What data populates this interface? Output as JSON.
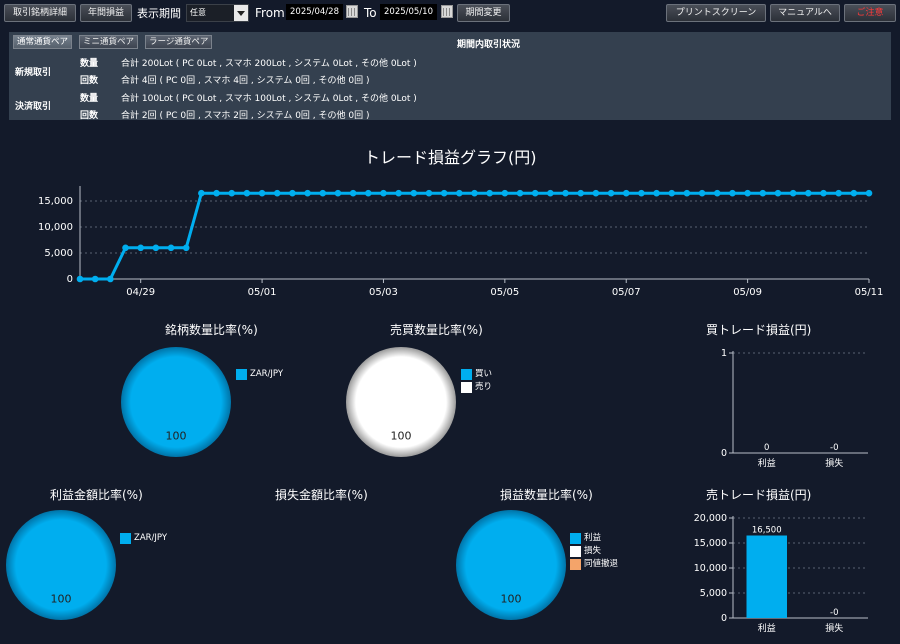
{
  "toolbar": {
    "detail_button": "取引銘柄詳細",
    "annual_button": "年間損益",
    "period_label": "表示期間",
    "period_select_value": "任意",
    "from_label": "From",
    "from_date": "2025/04/28",
    "to_label": "To",
    "to_date": "2025/05/10",
    "change_period_button": "期間変更",
    "print_button": "プリントスクリーン",
    "manual_button": "マニュアルへ",
    "close_button": "ご注意"
  },
  "panel": {
    "tabs": [
      {
        "label": "通常通貨ペア",
        "active": true
      },
      {
        "label": "ミニ通貨ペア",
        "active": false
      },
      {
        "label": "ラージ通貨ペア",
        "active": false
      }
    ],
    "title": "期間内取引状況",
    "new_label": "新規取引",
    "close_label": "決済取引",
    "rows": [
      {
        "key": "数量",
        "value": "合計 200Lot ( PC 0Lot , スマホ 200Lot , システム 0Lot , その他 0Lot )"
      },
      {
        "key": "回数",
        "value": "合計 4回 ( PC 0回 , スマホ 4回 , システム 0回 , その他 0回 )"
      },
      {
        "key": "数量",
        "value": "合計 100Lot ( PC 0Lot , スマホ 100Lot , システム 0Lot , その他 0Lot )"
      },
      {
        "key": "回数",
        "value": "合計 2回 ( PC 0回 , スマホ 2回 , システム 0回 , その他 0回 )"
      }
    ]
  },
  "chart_titles": {
    "main": "トレード損益グラフ(円)",
    "brand_ratio": "銘柄数量比率(%)",
    "side_ratio": "売買数量比率(%)",
    "buy_pl": "買トレード損益(円)",
    "profit_ratio": "利益金額比率(%)",
    "loss_ratio": "損失金額比率(%)",
    "count_ratio": "損益数量比率(%)",
    "sell_pl": "売トレード損益(円)"
  },
  "colors": {
    "accent": "#00aeef",
    "white": "#ffffff",
    "orange": "#f4a46a",
    "background": "#131a2a"
  },
  "chart_data": [
    {
      "type": "line",
      "name": "trade-pl-line",
      "title": "トレード損益グラフ(円)",
      "ylim": [
        0,
        17500
      ],
      "yticks": [
        0,
        5000,
        10000,
        15000
      ],
      "ytick_labels": [
        "0",
        "5,000",
        "10,000",
        "15,000"
      ],
      "x_start_date": "04/28",
      "x_tick_labels": [
        "04/29",
        "05/01",
        "05/03",
        "05/05",
        "05/07",
        "05/09",
        "05/11"
      ],
      "x_tick_positions": [
        2,
        6,
        10,
        14,
        18,
        22,
        26
      ],
      "x_max": 26,
      "points_per_day": 2,
      "values": [
        0,
        0,
        0,
        6000,
        6000,
        6000,
        6000,
        6000,
        16500,
        16500,
        16500,
        16500,
        16500,
        16500,
        16500,
        16500,
        16500,
        16500,
        16500,
        16500,
        16500,
        16500,
        16500,
        16500,
        16500,
        16500,
        16500,
        16500,
        16500,
        16500,
        16500,
        16500,
        16500,
        16500,
        16500,
        16500,
        16500,
        16500,
        16500,
        16500,
        16500,
        16500,
        16500,
        16500,
        16500,
        16500,
        16500,
        16500,
        16500,
        16500,
        16500,
        16500,
        16500
      ],
      "grid": true
    },
    {
      "type": "pie",
      "name": "brand-ratio",
      "title": "銘柄数量比率(%)",
      "slices": [
        {
          "label": "ZAR/JPY",
          "value": 100,
          "color": "#00aeef"
        }
      ],
      "label": "100"
    },
    {
      "type": "pie",
      "name": "side-ratio",
      "title": "売買数量比率(%)",
      "slices": [
        {
          "label": "買い",
          "value": 0,
          "color": "#00aeef"
        },
        {
          "label": "売り",
          "value": 100,
          "color": "#ffffff"
        }
      ],
      "label": "100"
    },
    {
      "type": "bar",
      "name": "buy-pl",
      "title": "買トレード損益(円)",
      "categories": [
        "利益",
        "損失"
      ],
      "values": [
        0,
        0
      ],
      "value_labels": [
        "0",
        "-0"
      ],
      "ylim": [
        0,
        1
      ],
      "yticks": [
        0,
        1
      ],
      "ytick_labels": [
        "0",
        "1"
      ]
    },
    {
      "type": "pie",
      "name": "profit-ratio",
      "title": "利益金額比率(%)",
      "slices": [
        {
          "label": "ZAR/JPY",
          "value": 100,
          "color": "#00aeef"
        }
      ],
      "label": "100"
    },
    {
      "type": "pie",
      "name": "loss-ratio",
      "title": "損失金額比率(%)",
      "slices": []
    },
    {
      "type": "pie",
      "name": "count-ratio",
      "title": "損益数量比率(%)",
      "slices": [
        {
          "label": "利益",
          "value": 100,
          "color": "#00aeef"
        },
        {
          "label": "損失",
          "value": 0,
          "color": "#ffffff"
        },
        {
          "label": "同値撤退",
          "value": 0,
          "color": "#f4a46a"
        }
      ],
      "label": "100"
    },
    {
      "type": "bar",
      "name": "sell-pl",
      "title": "売トレード損益(円)",
      "categories": [
        "利益",
        "損失"
      ],
      "values": [
        16500,
        0
      ],
      "value_labels": [
        "16,500",
        "-0"
      ],
      "ylim": [
        0,
        20000
      ],
      "yticks": [
        0,
        5000,
        10000,
        15000,
        20000
      ],
      "ytick_labels": [
        "0",
        "5,000",
        "10,000",
        "15,000",
        "20,000"
      ]
    }
  ]
}
